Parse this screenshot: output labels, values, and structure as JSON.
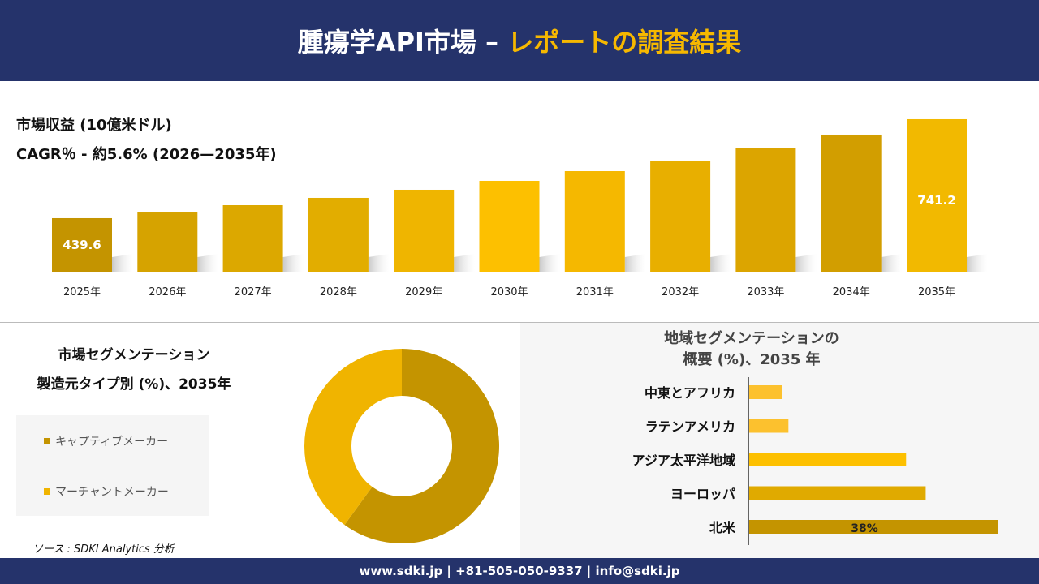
{
  "header": {
    "title_white": "腫瘍学API市場 –",
    "title_yellow": "レポートの調査結果"
  },
  "revenue": {
    "label": "市場収益 (10億米ドル)",
    "cagr": "CAGR％ - 約5.6% (2026—2035年)"
  },
  "chart_data": [
    {
      "type": "bar",
      "categories": [
        "2025年",
        "2026年",
        "2027年",
        "2028年",
        "2029年",
        "2030年",
        "2031年",
        "2032年",
        "2033年",
        "2034年",
        "2035年"
      ],
      "values": [
        439.6,
        459.3,
        479.1,
        501.4,
        526.1,
        553.3,
        582.9,
        615.1,
        652.2,
        694.2,
        741.2
      ],
      "data_labels": {
        "0": "439.6",
        "10": "741.2"
      },
      "colors": [
        "#c49400",
        "#d6a300",
        "#dca800",
        "#e2ad00",
        "#efb500",
        "#fdc000",
        "#f5b800",
        "#e8af00",
        "#dca500",
        "#d29e00",
        "#f2b900"
      ]
    },
    {
      "type": "pie",
      "title": "市場セグメンテーション",
      "subtitle": "製造元タイプ別 (%)、2035年",
      "slices": [
        {
          "name": "キャプティブメーカー",
          "value": 60,
          "color": "#c49400"
        },
        {
          "name": "マーチャントメーカー",
          "value": 40,
          "color": "#f0b400"
        }
      ]
    },
    {
      "type": "bar",
      "orientation": "horizontal",
      "title": "地域セグメンテーションの",
      "subtitle": "概要 (%)、2035 年",
      "categories": [
        "中東とアフリカ",
        "ラテンアメリカ",
        "アジア太平洋地域",
        "ヨーロッパ",
        "北米"
      ],
      "values": [
        5,
        6,
        24,
        27,
        38
      ],
      "data_labels": {
        "4": "38%"
      },
      "colors": [
        "#fcc12e",
        "#fcc12e",
        "#fdc000",
        "#e0aa00",
        "#c49400"
      ]
    }
  ],
  "source": "ソース : SDKI Analytics 分析",
  "footer": "www.sdki.jp | +81-505-050-9337 | info@sdki.jp"
}
